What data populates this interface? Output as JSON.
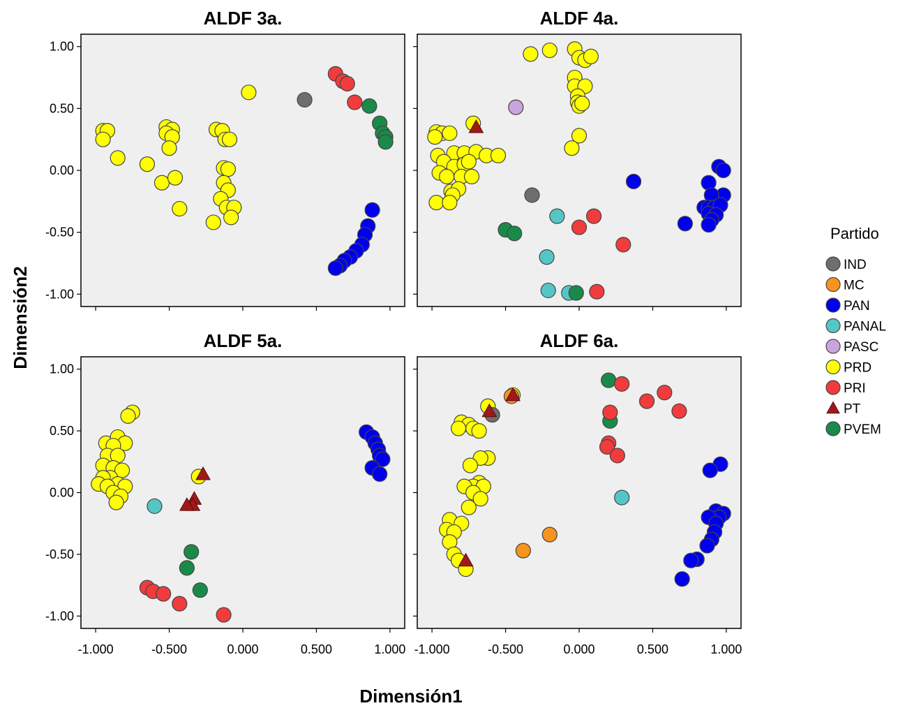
{
  "chart_data": {
    "type": "scatter",
    "xlabel": "Dimensión1",
    "ylabel": "Dimensión2",
    "xlim": [
      -1.1,
      1.1
    ],
    "ylim": [
      -1.1,
      1.1
    ],
    "x_ticks": [
      -1.0,
      -0.5,
      0.0,
      0.5,
      1.0
    ],
    "x_tick_labels": [
      "-1.000",
      "-0.500",
      "0.000",
      "0.500",
      "1.000"
    ],
    "y_ticks": [
      1.0,
      0.5,
      0.0,
      -0.5,
      -1.0
    ],
    "y_tick_labels": [
      "1.00",
      "0.50",
      "0.00",
      "-0.50",
      "-1.00"
    ],
    "legend": {
      "title": "Partido",
      "position": "right",
      "entries": [
        {
          "name": "IND",
          "color": "#6e6e6e",
          "shape": "circle"
        },
        {
          "name": "MC",
          "color": "#f7941d",
          "shape": "circle"
        },
        {
          "name": "PAN",
          "color": "#0000ee",
          "shape": "circle"
        },
        {
          "name": "PANAL",
          "color": "#55c6c6",
          "shape": "circle"
        },
        {
          "name": "PASC",
          "color": "#c9a5dd",
          "shape": "circle"
        },
        {
          "name": "PRD",
          "color": "#ffff00",
          "shape": "circle"
        },
        {
          "name": "PRI",
          "color": "#f03c3c",
          "shape": "circle"
        },
        {
          "name": "PT",
          "color": "#a01919",
          "shape": "triangle"
        },
        {
          "name": "PVEM",
          "color": "#1a8a4a",
          "shape": "circle"
        }
      ]
    },
    "panels": [
      {
        "title": "ALDF 3a.",
        "points": {
          "PRD": [
            [
              -0.95,
              0.32
            ],
            [
              -0.92,
              0.32
            ],
            [
              -0.95,
              0.25
            ],
            [
              -0.85,
              0.1
            ],
            [
              -0.65,
              0.05
            ],
            [
              -0.52,
              0.35
            ],
            [
              -0.48,
              0.33
            ],
            [
              -0.52,
              0.3
            ],
            [
              -0.48,
              0.27
            ],
            [
              -0.5,
              0.18
            ],
            [
              -0.55,
              -0.1
            ],
            [
              -0.46,
              -0.06
            ],
            [
              -0.43,
              -0.31
            ],
            [
              -0.18,
              0.33
            ],
            [
              -0.14,
              0.32
            ],
            [
              -0.12,
              0.25
            ],
            [
              -0.09,
              0.25
            ],
            [
              -0.13,
              0.02
            ],
            [
              -0.1,
              0.01
            ],
            [
              -0.13,
              -0.1
            ],
            [
              -0.1,
              -0.16
            ],
            [
              -0.15,
              -0.23
            ],
            [
              -0.11,
              -0.3
            ],
            [
              -0.06,
              -0.3
            ],
            [
              -0.08,
              -0.38
            ],
            [
              -0.2,
              -0.42
            ],
            [
              0.04,
              0.63
            ]
          ],
          "IND": [
            [
              0.42,
              0.57
            ]
          ],
          "PRI": [
            [
              0.63,
              0.78
            ],
            [
              0.68,
              0.72
            ],
            [
              0.71,
              0.7
            ],
            [
              0.76,
              0.55
            ]
          ],
          "PVEM": [
            [
              0.86,
              0.52
            ],
            [
              0.93,
              0.38
            ],
            [
              0.95,
              0.3
            ],
            [
              0.97,
              0.27
            ],
            [
              0.97,
              0.23
            ]
          ],
          "PAN": [
            [
              0.88,
              -0.32
            ],
            [
              0.85,
              -0.45
            ],
            [
              0.83,
              -0.52
            ],
            [
              0.81,
              -0.6
            ],
            [
              0.77,
              -0.65
            ],
            [
              0.73,
              -0.7
            ],
            [
              0.69,
              -0.73
            ],
            [
              0.66,
              -0.77
            ],
            [
              0.63,
              -0.79
            ]
          ]
        }
      },
      {
        "title": "ALDF 4a.",
        "points": {
          "PRD": [
            [
              -0.33,
              0.94
            ],
            [
              -0.2,
              0.97
            ],
            [
              -0.03,
              0.98
            ],
            [
              0.0,
              0.91
            ],
            [
              0.04,
              0.89
            ],
            [
              0.08,
              0.92
            ],
            [
              -0.03,
              0.75
            ],
            [
              -0.03,
              0.68
            ],
            [
              0.04,
              0.68
            ],
            [
              -0.01,
              0.6
            ],
            [
              -0.01,
              0.55
            ],
            [
              0.0,
              0.52
            ],
            [
              0.02,
              0.54
            ],
            [
              0.0,
              0.28
            ],
            [
              -0.05,
              0.18
            ],
            [
              -0.72,
              0.38
            ],
            [
              -0.97,
              0.31
            ],
            [
              -0.93,
              0.3
            ],
            [
              -0.88,
              0.3
            ],
            [
              -0.98,
              0.27
            ],
            [
              -0.96,
              0.12
            ],
            [
              -0.85,
              0.14
            ],
            [
              -0.78,
              0.14
            ],
            [
              -0.7,
              0.15
            ],
            [
              -0.63,
              0.12
            ],
            [
              -0.55,
              0.12
            ],
            [
              -0.92,
              0.07
            ],
            [
              -0.85,
              0.03
            ],
            [
              -0.78,
              0.05
            ],
            [
              -0.75,
              0.07
            ],
            [
              -0.95,
              -0.02
            ],
            [
              -0.9,
              -0.05
            ],
            [
              -0.8,
              -0.05
            ],
            [
              -0.73,
              -0.05
            ],
            [
              -0.87,
              -0.17
            ],
            [
              -0.82,
              -0.15
            ],
            [
              -0.86,
              -0.2
            ],
            [
              -0.97,
              -0.26
            ],
            [
              -0.88,
              -0.26
            ]
          ],
          "PT": [
            [
              -0.7,
              0.35
            ]
          ],
          "PASC": [
            [
              -0.43,
              0.51
            ]
          ],
          "IND": [
            [
              -0.32,
              -0.2
            ]
          ],
          "PANAL": [
            [
              -0.15,
              -0.37
            ],
            [
              -0.22,
              -0.7
            ],
            [
              -0.21,
              -0.97
            ],
            [
              -0.07,
              -0.99
            ]
          ],
          "PVEM": [
            [
              -0.5,
              -0.48
            ],
            [
              -0.44,
              -0.51
            ],
            [
              -0.02,
              -0.99
            ]
          ],
          "PRI": [
            [
              0.0,
              -0.46
            ],
            [
              0.1,
              -0.37
            ],
            [
              0.3,
              -0.6
            ],
            [
              0.12,
              -0.98
            ]
          ],
          "PAN": [
            [
              0.37,
              -0.09
            ],
            [
              0.95,
              0.03
            ],
            [
              0.98,
              0.0
            ],
            [
              0.88,
              -0.1
            ],
            [
              0.98,
              -0.2
            ],
            [
              0.9,
              -0.2
            ],
            [
              0.85,
              -0.3
            ],
            [
              0.88,
              -0.3
            ],
            [
              0.92,
              -0.3
            ],
            [
              0.96,
              -0.28
            ],
            [
              0.88,
              -0.35
            ],
            [
              0.93,
              -0.36
            ],
            [
              0.9,
              -0.4
            ],
            [
              0.88,
              -0.44
            ],
            [
              0.72,
              -0.43
            ]
          ]
        }
      },
      {
        "title": "ALDF 5a.",
        "points": {
          "PRD": [
            [
              -0.75,
              0.65
            ],
            [
              -0.78,
              0.62
            ],
            [
              -0.93,
              0.4
            ],
            [
              -0.85,
              0.45
            ],
            [
              -0.8,
              0.4
            ],
            [
              -0.88,
              0.38
            ],
            [
              -0.92,
              0.3
            ],
            [
              -0.85,
              0.3
            ],
            [
              -0.95,
              0.22
            ],
            [
              -0.88,
              0.2
            ],
            [
              -0.82,
              0.18
            ],
            [
              -0.9,
              0.12
            ],
            [
              -0.95,
              0.12
            ],
            [
              -0.98,
              0.07
            ],
            [
              -0.85,
              0.07
            ],
            [
              -0.8,
              0.05
            ],
            [
              -0.92,
              0.05
            ],
            [
              -0.88,
              0.0
            ],
            [
              -0.83,
              -0.03
            ],
            [
              -0.86,
              -0.08
            ],
            [
              -0.3,
              0.13
            ]
          ],
          "PT": [
            [
              -0.27,
              0.15
            ],
            [
              -0.33,
              -0.05
            ],
            [
              -0.34,
              -0.1
            ],
            [
              -0.38,
              -0.1
            ]
          ],
          "PANAL": [
            [
              -0.6,
              -0.11
            ]
          ],
          "PVEM": [
            [
              -0.35,
              -0.48
            ],
            [
              -0.38,
              -0.61
            ],
            [
              -0.29,
              -0.79
            ]
          ],
          "PRI": [
            [
              -0.65,
              -0.77
            ],
            [
              -0.61,
              -0.8
            ],
            [
              -0.54,
              -0.82
            ],
            [
              -0.43,
              -0.9
            ],
            [
              -0.13,
              -0.99
            ]
          ],
          "PAN": [
            [
              0.84,
              0.49
            ],
            [
              0.88,
              0.45
            ],
            [
              0.9,
              0.4
            ],
            [
              0.92,
              0.35
            ],
            [
              0.93,
              0.3
            ],
            [
              0.95,
              0.27
            ],
            [
              0.88,
              0.2
            ],
            [
              0.93,
              0.15
            ]
          ]
        }
      },
      {
        "title": "ALDF 6a.",
        "points": {
          "PRD": [
            [
              -0.62,
              0.7
            ],
            [
              -0.45,
              0.79
            ],
            [
              -0.8,
              0.57
            ],
            [
              -0.75,
              0.55
            ],
            [
              -0.72,
              0.52
            ],
            [
              -0.82,
              0.52
            ],
            [
              -0.68,
              0.5
            ],
            [
              -0.62,
              0.28
            ],
            [
              -0.67,
              0.28
            ],
            [
              -0.74,
              0.22
            ],
            [
              -0.68,
              0.08
            ],
            [
              -0.72,
              0.05
            ],
            [
              -0.78,
              0.05
            ],
            [
              -0.65,
              0.05
            ],
            [
              -0.72,
              0.0
            ],
            [
              -0.67,
              -0.05
            ],
            [
              -0.75,
              -0.12
            ],
            [
              -0.88,
              -0.22
            ],
            [
              -0.8,
              -0.25
            ],
            [
              -0.9,
              -0.3
            ],
            [
              -0.85,
              -0.32
            ],
            [
              -0.88,
              -0.4
            ],
            [
              -0.85,
              -0.5
            ],
            [
              -0.82,
              -0.55
            ],
            [
              -0.77,
              -0.62
            ]
          ],
          "PT": [
            [
              -0.61,
              0.66
            ],
            [
              -0.45,
              0.79
            ],
            [
              -0.77,
              -0.55
            ]
          ],
          "IND": [
            [
              -0.59,
              0.63
            ]
          ],
          "MC": [
            [
              -0.46,
              0.78
            ],
            [
              -0.38,
              -0.47
            ],
            [
              -0.2,
              -0.34
            ]
          ],
          "PVEM": [
            [
              0.2,
              0.91
            ],
            [
              0.21,
              0.58
            ]
          ],
          "PRI": [
            [
              0.29,
              0.88
            ],
            [
              0.46,
              0.74
            ],
            [
              0.58,
              0.81
            ],
            [
              0.68,
              0.66
            ],
            [
              0.21,
              0.65
            ],
            [
              0.2,
              0.4
            ],
            [
              0.19,
              0.37
            ],
            [
              0.26,
              0.3
            ]
          ],
          "PANAL": [
            [
              0.29,
              -0.04
            ]
          ],
          "PAN": [
            [
              0.96,
              0.23
            ],
            [
              0.89,
              0.18
            ],
            [
              0.93,
              -0.15
            ],
            [
              0.98,
              -0.17
            ],
            [
              0.95,
              -0.2
            ],
            [
              0.88,
              -0.2
            ],
            [
              0.93,
              -0.25
            ],
            [
              0.92,
              -0.32
            ],
            [
              0.9,
              -0.38
            ],
            [
              0.87,
              -0.43
            ],
            [
              0.8,
              -0.54
            ],
            [
              0.76,
              -0.55
            ],
            [
              0.7,
              -0.7
            ]
          ]
        }
      }
    ]
  }
}
